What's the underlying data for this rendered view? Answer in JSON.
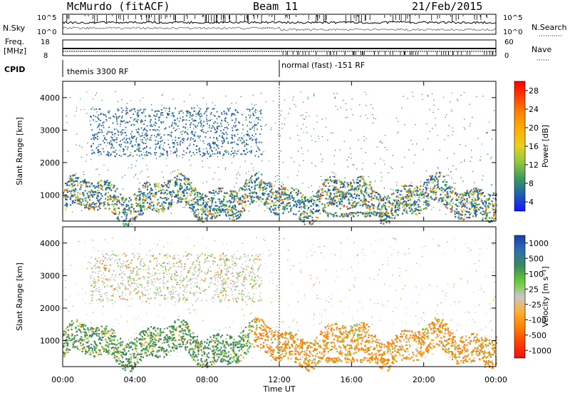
{
  "header": {
    "station": "McMurdo (fitACF)",
    "beam": "Beam 11",
    "date": "21/Feb/2015"
  },
  "summary": {
    "nsky_label": "N.Sky",
    "nsky_ticks": [
      "10^5",
      "10^0"
    ],
    "nsearch_label": "N.Search",
    "nsearch_ticks": [
      "10^5",
      "10^0"
    ],
    "freq_label_1": "Freq.",
    "freq_label_2": "[MHz]",
    "freq_ticks": [
      "18",
      "8"
    ],
    "nave_label": "Nave",
    "nave_ticks": [
      "60",
      "0"
    ],
    "cpid_label": "CPID",
    "cpid_segments": [
      {
        "text": "themis 3300 RF",
        "start_hour": 0
      },
      {
        "text": "normal (fast) -151 RF",
        "start_hour": 12
      }
    ]
  },
  "chart_data": [
    {
      "type": "heatmap",
      "title": "",
      "quantity": "Power",
      "xlabel": "",
      "ylabel": "Slant Range [km]",
      "xlim": [
        0,
        24
      ],
      "ylim": [
        200,
        4500
      ],
      "xticks": [
        "00:00",
        "04:00",
        "08:00",
        "12:00",
        "16:00",
        "20:00",
        "00:00"
      ],
      "yticks": [
        "1000",
        "2000",
        "3000",
        "4000"
      ],
      "colorbar": {
        "label": "Power [dB]",
        "ticks": [
          "28",
          "24",
          "20",
          "16",
          "12",
          "8",
          "4"
        ],
        "colors": [
          "#ff0000",
          "#ff4400",
          "#ff8800",
          "#ffb000",
          "#e8d020",
          "#90c840",
          "#3a9a5a",
          "#1e5fb0",
          "#1414ff"
        ]
      },
      "features": [
        {
          "name": "main band",
          "x": [
            0,
            24
          ],
          "range_km": [
            550,
            1700
          ]
        },
        {
          "name": "upper patches",
          "x": [
            1.5,
            11
          ],
          "range_km": [
            2200,
            3800
          ]
        }
      ]
    },
    {
      "type": "heatmap",
      "title": "",
      "quantity": "Velocity",
      "xlabel": "Time UT",
      "ylabel": "Slant Range [km]",
      "xlim": [
        0,
        24
      ],
      "ylim": [
        200,
        4500
      ],
      "xticks": [
        "00:00",
        "04:00",
        "08:00",
        "12:00",
        "16:00",
        "20:00",
        "00:00"
      ],
      "yticks": [
        "1000",
        "2000",
        "3000",
        "4000"
      ],
      "colorbar": {
        "label": "Velocity [m s⁻¹]",
        "ticks": [
          "1000",
          "500",
          "100",
          "25",
          "-25",
          "-100",
          "-500",
          "-1000"
        ],
        "colors": [
          "#1a3ea8",
          "#2d6fb0",
          "#3c8a5c",
          "#66cc33",
          "#c8c8c8",
          "#ffb030",
          "#ff8000",
          "#ff4000",
          "#ee1010"
        ]
      },
      "features": [
        {
          "name": "positive velocity band (green)",
          "x": [
            0,
            10.5
          ],
          "range_km": [
            500,
            1700
          ]
        },
        {
          "name": "negative velocity band (orange)",
          "x": [
            10.5,
            24
          ],
          "range_km": [
            500,
            1600
          ]
        }
      ]
    }
  ]
}
